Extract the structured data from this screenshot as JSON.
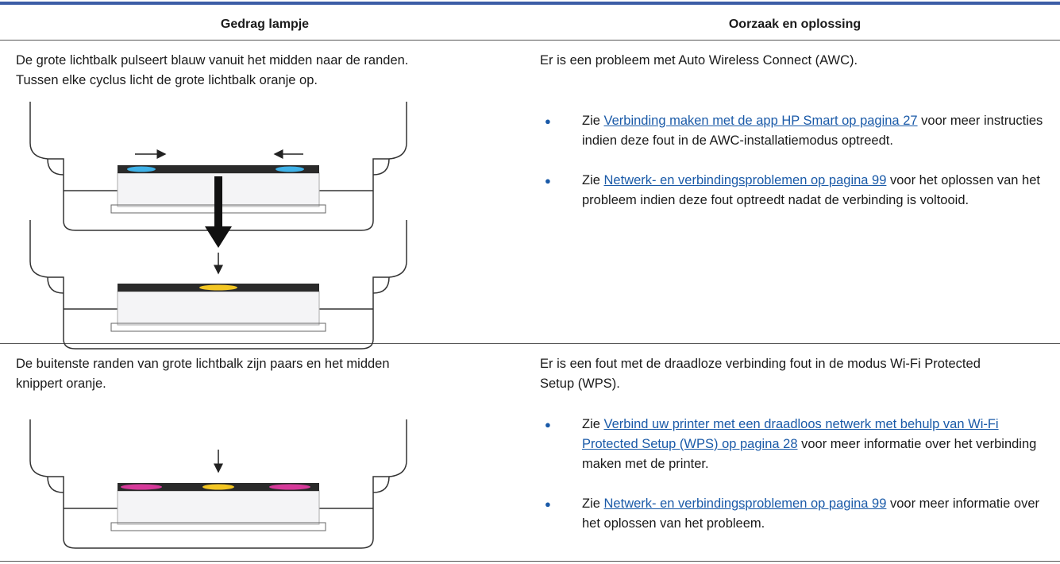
{
  "table": {
    "headers": [
      "Gedrag lampje",
      "Oorzaak en oplossing"
    ],
    "rows": [
      {
        "behavior": [
          "De grote lichtbalk pulseert blauw vanuit het midden naar de randen.",
          "Tussen elke cyclus licht de grote lichtbalk oranje op."
        ],
        "cause": {
          "intro": "Er is een probleem met Auto Wireless Connect (AWC).",
          "bullets": [
            {
              "prefix": "Zie",
              "link": "Verbinding maken met de app HP Smart op pagina 27",
              "suffix": "voor meer instructies indien deze fout in de AWC-installatiemodus optreedt."
            },
            {
              "prefix": "Zie",
              "link": "Netwerk- en verbindingsproblemen op pagina 99",
              "suffix": "voor het oplossen van het probleem indien deze fout optreedt nadat de verbinding is voltooid."
            }
          ]
        }
      },
      {
        "behavior": [
          "De buitenste randen van grote lichtbalk zijn paars en het midden",
          "knippert oranje."
        ],
        "cause": {
          "intro": "Er is een fout met de draadloze verbinding fout in de modus Wi-Fi Protected Setup (WPS).",
          "bullets": [
            {
              "prefix": "Zie",
              "link": "Verbind uw printer met een draadloos netwerk met behulp van Wi-Fi Protected Setup (WPS) op pagina 28",
              "suffix": "voor meer informatie over het verbinding maken met de printer."
            },
            {
              "prefix": "Zie",
              "link": "Netwerk- en verbindingsproblemen op pagina 99",
              "suffix": "voor meer informatie over het oplossen van het probleem."
            }
          ]
        }
      }
    ]
  }
}
